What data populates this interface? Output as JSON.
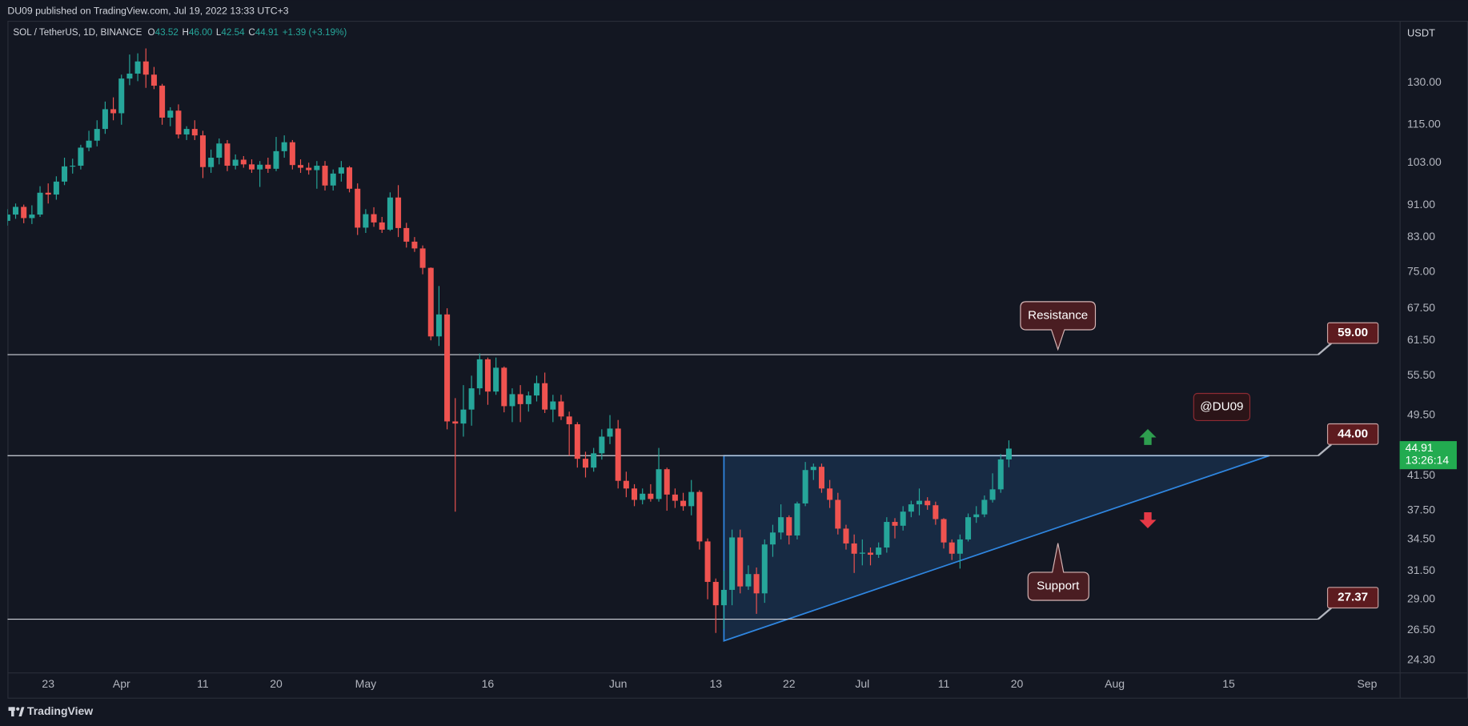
{
  "chart_data": {
    "type": "candlestick",
    "publisher": "DU09 published on TradingView.com, Jul 19, 2022 13:33 UTC+3",
    "title": "SOL / TetherUS, 1D, BINANCE",
    "ohlc_legend": [
      {
        "key": "O",
        "value": "43.52"
      },
      {
        "key": "H",
        "value": "46.00"
      },
      {
        "key": "L",
        "value": "42.54"
      },
      {
        "key": "C",
        "value": "44.91"
      }
    ],
    "change": "+1.39 (+3.19%)",
    "y_unit": "USDT",
    "brand": "TradingView",
    "log_scale": true,
    "grid": false,
    "up_color": "#26a69a",
    "down_color": "#ef5350",
    "pattern_color": "#2f86e0",
    "x": [
      "03-18",
      "03-19",
      "03-20",
      "03-21",
      "03-22",
      "03-23",
      "03-24",
      "03-25",
      "03-26",
      "03-27",
      "03-28",
      "03-29",
      "03-30",
      "03-31",
      "04-01",
      "04-02",
      "04-03",
      "04-04",
      "04-05",
      "04-06",
      "04-07",
      "04-08",
      "04-09",
      "04-10",
      "04-11",
      "04-12",
      "04-13",
      "04-14",
      "04-15",
      "04-16",
      "04-17",
      "04-18",
      "04-19",
      "04-20",
      "04-21",
      "04-22",
      "04-23",
      "04-24",
      "04-25",
      "04-26",
      "04-27",
      "04-28",
      "04-29",
      "04-30",
      "05-01",
      "05-02",
      "05-03",
      "05-04",
      "05-05",
      "05-06",
      "05-07",
      "05-08",
      "05-09",
      "05-10",
      "05-11",
      "05-12",
      "05-13",
      "05-14",
      "05-15",
      "05-16",
      "05-17",
      "05-18",
      "05-19",
      "05-20",
      "05-21",
      "05-22",
      "05-23",
      "05-24",
      "05-25",
      "05-26",
      "05-27",
      "05-28",
      "05-29",
      "05-30",
      "05-31",
      "06-01",
      "06-02",
      "06-03",
      "06-04",
      "06-05",
      "06-06",
      "06-07",
      "06-08",
      "06-09",
      "06-10",
      "06-11",
      "06-12",
      "06-13",
      "06-14",
      "06-15",
      "06-16",
      "06-17",
      "06-18",
      "06-19",
      "06-20",
      "06-21",
      "06-22",
      "06-23",
      "06-24",
      "06-25",
      "06-26",
      "06-27",
      "06-28",
      "06-29",
      "06-30",
      "07-01",
      "07-02",
      "07-03",
      "07-04",
      "07-05",
      "07-06",
      "07-07",
      "07-08",
      "07-09",
      "07-10",
      "07-11",
      "07-12",
      "07-13",
      "07-14",
      "07-15",
      "07-16",
      "07-17",
      "07-18",
      "07-19"
    ],
    "open": [
      87.0,
      88.6,
      90.6,
      87.7,
      88.6,
      94.4,
      93.9,
      97.5,
      101.9,
      102.1,
      107.6,
      109.8,
      113.6,
      120.3,
      118.9,
      131.5,
      133.4,
      138.2,
      133.0,
      128.8,
      117.4,
      119.8,
      111.8,
      113.6,
      111.5,
      101.7,
      104.5,
      108.9,
      102.1,
      103.9,
      102.5,
      101.0,
      102.4,
      101.2,
      106.5,
      109.3,
      102.3,
      101.5,
      100.8,
      102.1,
      96.4,
      99.8,
      101.6,
      95.5,
      85.3,
      88.7,
      86.6,
      84.8,
      93.1,
      85.2,
      81.9,
      80.3,
      75.9,
      62.2,
      66.3,
      48.6,
      48.3,
      50.3,
      53.5,
      58.2,
      53.0,
      56.8,
      50.8,
      52.6,
      51.1,
      52.4,
      54.3,
      50.3,
      51.5,
      49.3,
      48.2,
      43.6,
      42.5,
      44.3,
      46.5,
      47.6,
      40.9,
      40.0,
      38.7,
      39.4,
      38.8,
      42.3,
      39.3,
      38.6,
      38.0,
      39.6,
      34.3,
      30.5,
      28.5,
      29.8,
      34.7,
      30.1,
      31.2,
      29.5,
      34.0,
      35.2,
      36.8,
      34.9,
      38.3,
      42.2,
      42.6,
      40.0,
      38.7,
      35.6,
      34.1,
      33.1,
      33.2,
      33.0,
      33.7,
      36.3,
      35.9,
      37.4,
      38.2,
      38.6,
      38.1,
      36.6,
      34.2,
      33.1,
      34.5,
      36.8,
      37.1,
      38.7,
      39.9,
      43.52
    ],
    "high": [
      90.0,
      91.5,
      91.2,
      91.0,
      96.2,
      97.0,
      99.0,
      104.5,
      104.2,
      108.5,
      113.0,
      116.5,
      123.0,
      124.5,
      133.0,
      141.0,
      141.5,
      143.5,
      136.0,
      129.5,
      121.0,
      122.0,
      114.5,
      116.5,
      113.0,
      107.0,
      110.5,
      110.0,
      105.5,
      105.0,
      104.0,
      103.5,
      104.5,
      111.0,
      111.5,
      110.0,
      104.0,
      103.0,
      103.5,
      103.5,
      101.0,
      103.5,
      102.0,
      97.0,
      90.0,
      90.5,
      88.0,
      94.5,
      96.5,
      86.5,
      83.0,
      81.0,
      76.0,
      72.0,
      67.5,
      52.0,
      54.0,
      55.5,
      59.2,
      58.5,
      58.5,
      57.0,
      53.5,
      54.0,
      53.0,
      55.5,
      56.0,
      52.5,
      52.5,
      50.0,
      48.5,
      44.5,
      45.0,
      47.5,
      49.5,
      48.8,
      42.0,
      40.5,
      40.0,
      40.5,
      45.0,
      42.5,
      40.0,
      39.5,
      41.0,
      39.8,
      34.6,
      30.8,
      31.5,
      35.5,
      35.5,
      32.0,
      31.8,
      34.5,
      36.0,
      38.2,
      37.0,
      38.5,
      43.2,
      43.0,
      43.0,
      41.0,
      39.5,
      36.0,
      35.0,
      34.5,
      33.7,
      34.2,
      36.8,
      36.7,
      38.0,
      38.6,
      40.0,
      39.0,
      38.5,
      36.7,
      34.5,
      35.0,
      37.2,
      38.0,
      39.2,
      41.8,
      44.2,
      46.0
    ],
    "low": [
      85.8,
      87.5,
      86.4,
      86.2,
      88.0,
      91.5,
      92.5,
      96.5,
      99.8,
      101.0,
      106.5,
      108.0,
      112.0,
      116.5,
      115.0,
      129.0,
      130.5,
      128.0,
      127.5,
      115.0,
      114.5,
      110.5,
      110.0,
      110.0,
      98.5,
      100.0,
      102.5,
      100.5,
      101.0,
      101.5,
      100.0,
      96.0,
      100.0,
      100.5,
      104.5,
      101.0,
      100.0,
      99.5,
      95.5,
      95.0,
      95.0,
      97.5,
      94.5,
      83.5,
      84.0,
      85.5,
      84.0,
      84.5,
      83.0,
      80.5,
      79.5,
      74.5,
      61.5,
      60.5,
      47.5,
      37.4,
      46.5,
      48.0,
      52.5,
      51.0,
      52.5,
      49.9,
      48.5,
      48.5,
      50.0,
      51.5,
      49.8,
      48.5,
      48.8,
      44.0,
      42.5,
      41.3,
      42.0,
      43.5,
      45.5,
      40.0,
      39.0,
      38.0,
      38.2,
      38.5,
      38.5,
      37.5,
      37.8,
      37.5,
      37.0,
      33.5,
      29.0,
      26.3,
      26.6,
      28.5,
      29.5,
      29.8,
      27.8,
      28.7,
      32.8,
      34.5,
      34.0,
      34.5,
      38.0,
      41.0,
      39.5,
      37.8,
      35.0,
      33.5,
      31.3,
      32.0,
      32.0,
      32.7,
      33.2,
      34.6,
      35.4,
      36.8,
      37.0,
      37.6,
      36.0,
      33.6,
      32.5,
      31.7,
      34.3,
      36.2,
      36.8,
      38.4,
      39.5,
      42.54
    ],
    "close": [
      88.6,
      90.6,
      87.7,
      88.6,
      94.4,
      93.9,
      97.5,
      101.9,
      102.1,
      107.6,
      109.8,
      113.6,
      120.3,
      118.9,
      131.5,
      133.4,
      138.2,
      133.0,
      128.8,
      117.4,
      119.8,
      111.8,
      113.6,
      111.5,
      101.7,
      104.5,
      108.9,
      102.1,
      103.9,
      102.5,
      101.0,
      102.4,
      101.2,
      106.5,
      109.3,
      102.3,
      101.5,
      100.8,
      102.1,
      96.4,
      99.8,
      101.6,
      95.5,
      85.3,
      88.7,
      86.6,
      84.8,
      93.1,
      85.2,
      81.9,
      80.3,
      75.9,
      62.2,
      66.3,
      48.6,
      48.3,
      50.3,
      53.5,
      58.2,
      53.0,
      56.8,
      50.8,
      52.6,
      51.1,
      52.4,
      54.3,
      50.3,
      51.5,
      49.3,
      48.2,
      43.6,
      42.5,
      44.3,
      46.5,
      47.6,
      40.9,
      40.0,
      38.7,
      39.4,
      38.8,
      42.3,
      39.3,
      38.6,
      38.0,
      39.6,
      34.3,
      30.5,
      28.5,
      29.8,
      34.7,
      30.1,
      31.2,
      29.5,
      34.0,
      35.2,
      36.8,
      34.9,
      38.3,
      42.2,
      42.6,
      40.0,
      38.7,
      35.6,
      34.1,
      33.1,
      33.2,
      33.0,
      33.7,
      36.3,
      35.9,
      37.4,
      38.2,
      38.6,
      38.1,
      36.6,
      34.2,
      33.1,
      34.5,
      36.8,
      37.1,
      38.7,
      39.9,
      43.52,
      44.91
    ],
    "xlim": [
      "03-18",
      "09-05"
    ],
    "xticks": [
      {
        "value": "03-23",
        "label": "23"
      },
      {
        "value": "04-01",
        "label": "Apr"
      },
      {
        "value": "04-11",
        "label": "11"
      },
      {
        "value": "04-20",
        "label": "20"
      },
      {
        "value": "05-01",
        "label": "May"
      },
      {
        "value": "05-16",
        "label": "16"
      },
      {
        "value": "06-01",
        "label": "Jun"
      },
      {
        "value": "06-13",
        "label": "13"
      },
      {
        "value": "06-22",
        "label": "22"
      },
      {
        "value": "07-01",
        "label": "Jul"
      },
      {
        "value": "07-11",
        "label": "11"
      },
      {
        "value": "07-20",
        "label": "20"
      },
      {
        "value": "08-01",
        "label": "Aug"
      },
      {
        "value": "08-15",
        "label": "15"
      },
      {
        "value": "09-01",
        "label": "Sep"
      }
    ],
    "ylim": [
      23.45,
      155.5
    ],
    "yticks": [
      {
        "value": 130,
        "label": "130.00"
      },
      {
        "value": 115,
        "label": "115.00"
      },
      {
        "value": 103,
        "label": "103.00"
      },
      {
        "value": 91,
        "label": "91.00"
      },
      {
        "value": 83,
        "label": "83.00"
      },
      {
        "value": 75,
        "label": "75.00"
      },
      {
        "value": 67.5,
        "label": "67.50"
      },
      {
        "value": 61.5,
        "label": "61.50"
      },
      {
        "value": 55.5,
        "label": "55.50"
      },
      {
        "value": 49.5,
        "label": "49.50"
      },
      {
        "value": 41.5,
        "label": "41.50"
      },
      {
        "value": 37.5,
        "label": "37.50"
      },
      {
        "value": 34.5,
        "label": "34.50"
      },
      {
        "value": 31.5,
        "label": "31.50"
      },
      {
        "value": 29,
        "label": "29.00"
      },
      {
        "value": 26.5,
        "label": "26.50"
      },
      {
        "value": 24.3,
        "label": "24.30"
      }
    ],
    "levels": [
      {
        "value": 59,
        "label": "59.00"
      },
      {
        "value": 44,
        "label": "44.00"
      },
      {
        "value": 27.37,
        "label": "27.37"
      }
    ],
    "last_price": 44.91,
    "countdown": "13:26:14",
    "pattern": [
      {
        "x": "06-14",
        "y": 44
      },
      {
        "x": "08-20",
        "y": 44
      },
      {
        "x": "06-14",
        "y": 25.7
      }
    ],
    "annotations": [
      "Resistance",
      "Support",
      "@DU09"
    ]
  }
}
